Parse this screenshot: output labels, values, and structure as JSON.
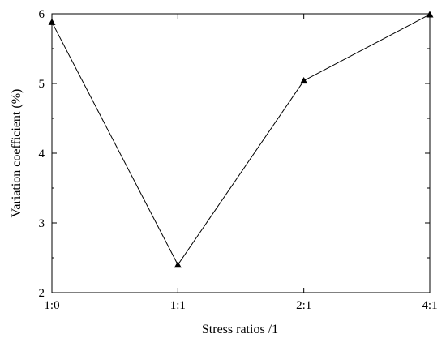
{
  "chart_data": {
    "type": "line",
    "title": "",
    "xlabel": "Stress ratios /1",
    "ylabel": "Variation coefficient  (%)",
    "categories": [
      "1:0",
      "1:1",
      "2:1",
      "4:1"
    ],
    "series": [
      {
        "values": [
          5.88,
          2.4,
          5.04,
          5.99
        ],
        "marker": "triangle",
        "color": "#000000"
      }
    ],
    "ylim": [
      2,
      6
    ],
    "yticks": [
      "2",
      "3",
      "4",
      "5",
      "6"
    ],
    "grid": false,
    "legend": "none"
  }
}
